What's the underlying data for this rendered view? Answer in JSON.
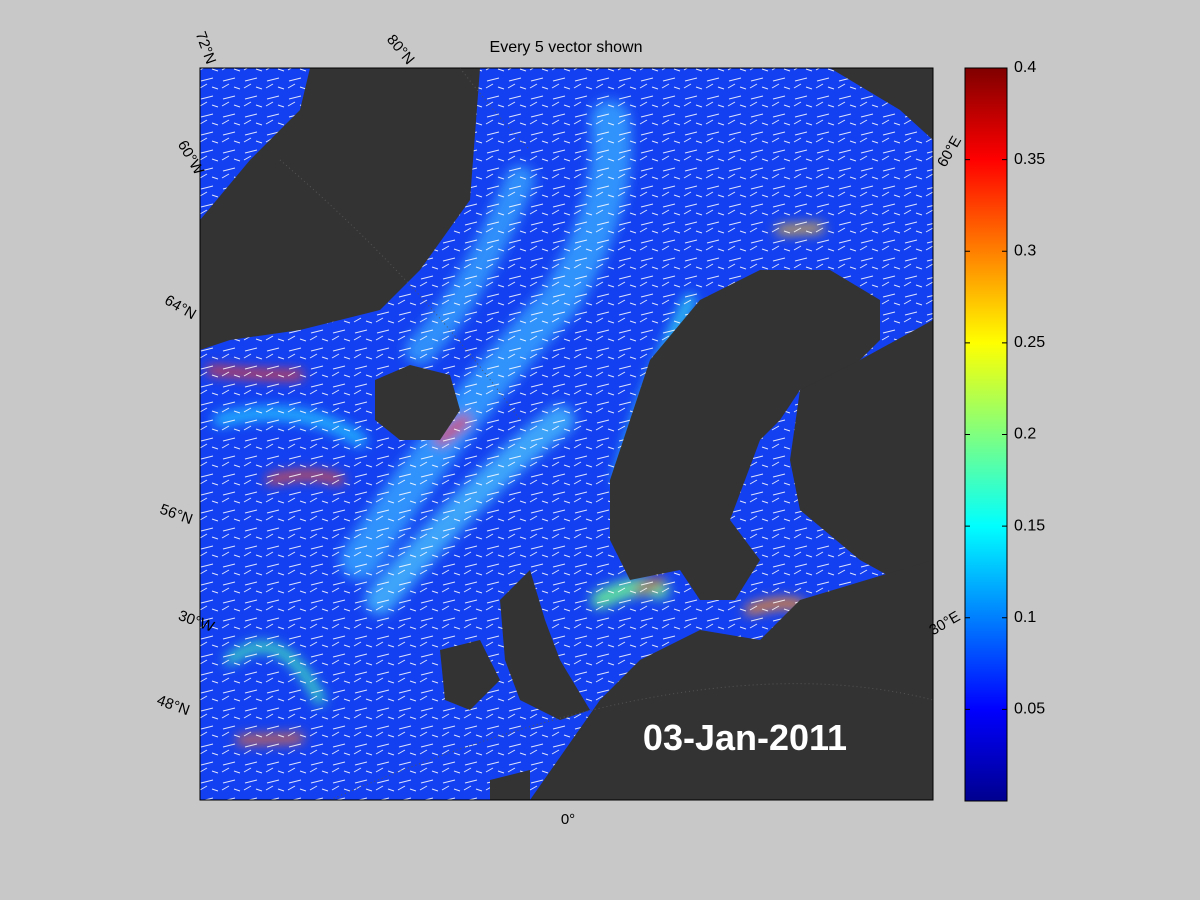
{
  "title": "Every 5 vector shown",
  "date_label": "03-Jan-2011",
  "graticule_labels": [
    "72°N",
    "80°N",
    "60°W",
    "64°N",
    "56°N",
    "30°W",
    "48°N",
    "0°",
    "30°E",
    "60°E"
  ],
  "colorbar": {
    "lim": [
      0,
      0.4
    ],
    "ticks": [
      0.05,
      0.1,
      0.15,
      0.2,
      0.25,
      0.3,
      0.35,
      0.4
    ]
  }
}
